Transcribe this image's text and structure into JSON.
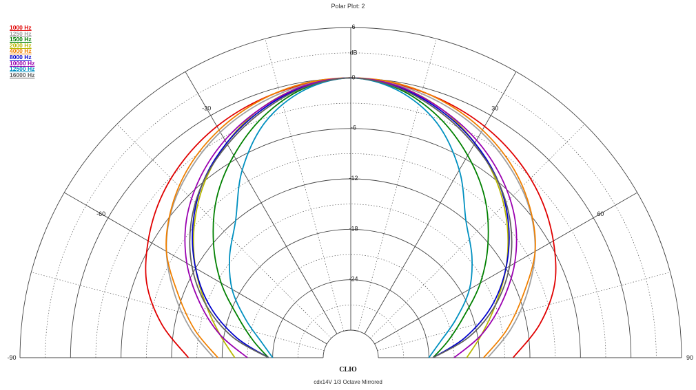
{
  "chart_data": {
    "type": "polar",
    "title": "Polar Plot: 2",
    "brand": "CLIO",
    "footer": "cdx14V  1/3 Octave  Mirrored",
    "angle_range": [
      -90,
      90
    ],
    "angle_ticks": [
      -90,
      -60,
      -30,
      0,
      30,
      60,
      90
    ],
    "angle_tick_labels": [
      "-90",
      "-60",
      "-30",
      "0",
      "30",
      "60",
      "90"
    ],
    "radial_range": [
      -30,
      6
    ],
    "radial_ticks": [
      6,
      0,
      -6,
      -12,
      -18,
      -24
    ],
    "radial_tick_labels": [
      "6",
      "0",
      "-6",
      "-12",
      "-18",
      "-24"
    ],
    "radial_unit": "dB",
    "grid": true,
    "legend_position": "top-left",
    "series": [
      {
        "name": "1000 Hz",
        "color": "#e00000",
        "angles": [
          0,
          10,
          20,
          30,
          40,
          50,
          60,
          70,
          80,
          90
        ],
        "values": [
          0,
          -0.3,
          -0.8,
          -1.5,
          -2.5,
          -3.8,
          -5.5,
          -7.5,
          -10.5,
          -14
        ]
      },
      {
        "name": "1250 Hz",
        "color": "#a0a0a0",
        "angles": [
          0,
          10,
          20,
          30,
          40,
          50,
          60,
          70,
          80,
          90
        ],
        "values": [
          0,
          -0.4,
          -1.2,
          -2.3,
          -3.8,
          -5.6,
          -8,
          -11,
          -14,
          -17
        ]
      },
      {
        "name": "1500 Hz",
        "color": "#008000",
        "angles": [
          0,
          10,
          20,
          30,
          40,
          50,
          60,
          70,
          80,
          90
        ],
        "values": [
          0,
          -0.8,
          -2.8,
          -5.5,
          -8.5,
          -12,
          -15.5,
          -19,
          -21.5,
          -23.5
        ]
      },
      {
        "name": "2000 Hz",
        "color": "#b8b800",
        "angles": [
          0,
          10,
          20,
          30,
          40,
          50,
          60,
          70,
          80,
          90
        ],
        "values": [
          0,
          -0.5,
          -1.8,
          -3.8,
          -6.2,
          -9,
          -12,
          -15,
          -17.5,
          -19.5
        ]
      },
      {
        "name": "4000 Hz",
        "color": "#f08000",
        "angles": [
          0,
          10,
          20,
          30,
          40,
          50,
          60,
          70,
          80,
          90
        ],
        "values": [
          0,
          -0.2,
          -0.9,
          -2,
          -3.5,
          -5.5,
          -8,
          -11.5,
          -14.5,
          -17.5
        ]
      },
      {
        "name": "8000 Hz",
        "color": "#0000cc",
        "angles": [
          0,
          10,
          20,
          30,
          40,
          50,
          60,
          70,
          80,
          90
        ],
        "values": [
          0,
          -0.6,
          -2,
          -3.8,
          -6,
          -8.8,
          -12,
          -15.5,
          -19.5,
          -23.5
        ]
      },
      {
        "name": "10000 Hz",
        "color": "#9a00b0",
        "angles": [
          0,
          10,
          20,
          30,
          40,
          50,
          60,
          70,
          80,
          90
        ],
        "values": [
          0,
          -0.5,
          -1.8,
          -3.4,
          -5.4,
          -7.8,
          -10.8,
          -14.2,
          -17.5,
          -21
        ]
      },
      {
        "name": "12500 Hz",
        "color": "#0090c0",
        "angles": [
          0,
          10,
          20,
          30,
          40,
          50,
          60,
          70,
          80,
          90
        ],
        "values": [
          0,
          -1,
          -3.5,
          -7.5,
          -12,
          -14.5,
          -17,
          -20,
          -22.5,
          -24
        ]
      },
      {
        "name": "16000 Hz",
        "color": "#606060",
        "angles": [
          0,
          10,
          20,
          30,
          40,
          50,
          60,
          70,
          80,
          90
        ],
        "values": [
          0,
          -0.7,
          -2.2,
          -4,
          -6,
          -8.5,
          -11.5,
          -15,
          -19,
          -23.5
        ]
      }
    ]
  }
}
